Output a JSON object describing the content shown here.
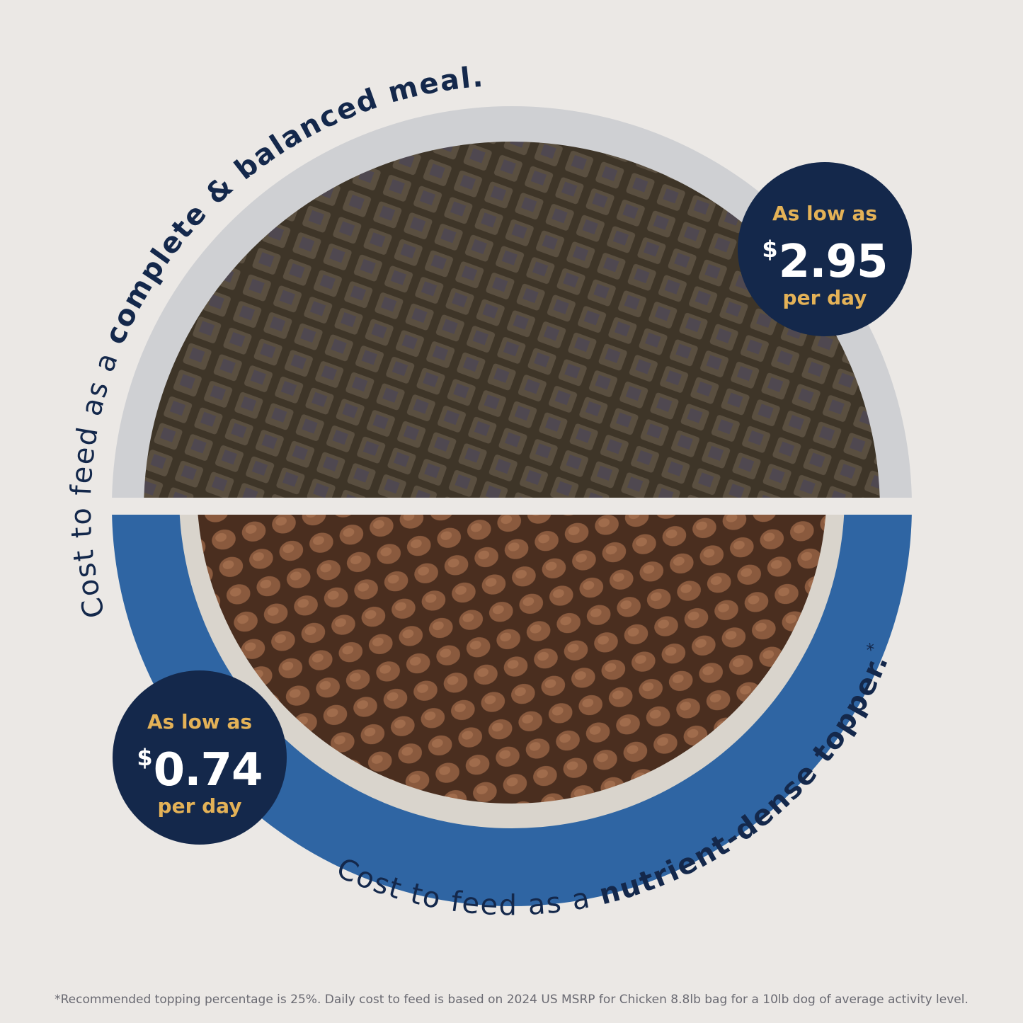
{
  "top_caption": {
    "regular": "Cost to feed as a ",
    "bold": "complete & balanced meal."
  },
  "bottom_caption": {
    "regular": "Cost to feed as a ",
    "bold": "nutrient-dense topper.",
    "mark": "*"
  },
  "badge_meal": {
    "label": "As low as",
    "currency": "$",
    "price": "2.95",
    "unit": "per day"
  },
  "badge_topper": {
    "label": "As low as",
    "currency": "$",
    "price": "0.74",
    "unit": "per day"
  },
  "footnote": "*Recommended topping percentage is 25%. Daily cost to feed is based on 2024 US MSRP for Chicken 8.8lb bag for a 10lb dog of average activity level.",
  "colors": {
    "navy": "#14284b",
    "gold": "#e4b257",
    "bowl_blue": "#2f65a3",
    "background": "#ebe8e5"
  }
}
